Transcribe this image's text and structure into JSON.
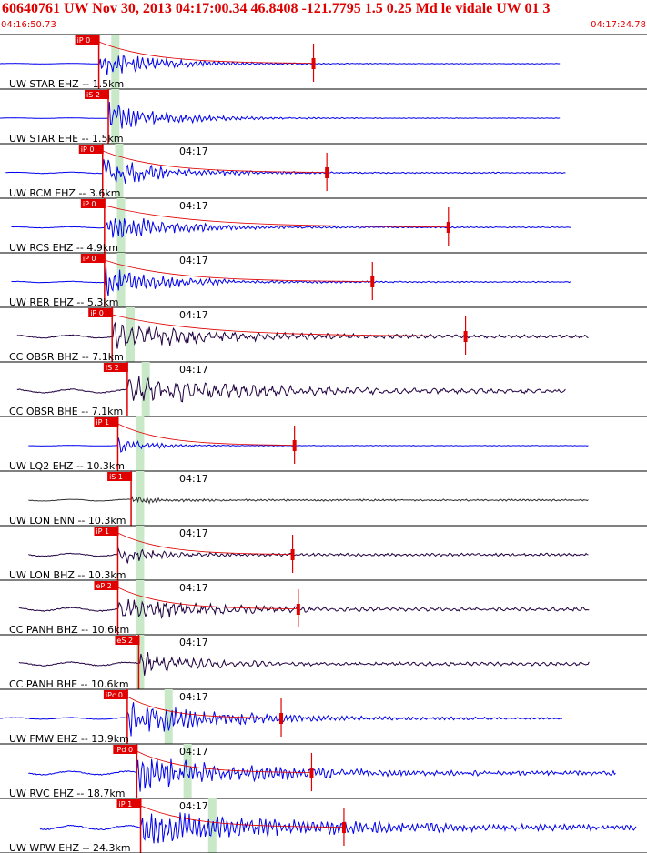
{
  "header": {
    "title": "60640761 UW Nov 30, 2013 04:17:00.34   46.8408 -121.7795  1.5 0.25 Md le vidale UW 01   3",
    "time_start": "04:16:50.73",
    "time_end": "04:17:24.78"
  },
  "colors": {
    "header": "#e00000",
    "pick": "#e00000",
    "shade": "#c8e8c8",
    "uw_trace": "#0000ee",
    "cc_trace": "#200040",
    "lqn_enn_trace": "#303030"
  },
  "chart_data": {
    "type": "seismogram",
    "time_range_s": [
      0,
      34.05
    ],
    "minute_tick_label": "04:17",
    "traces": [
      {
        "label": "UW STAR EHZ -- 1.5km",
        "color": "uw",
        "pick": "iP 0",
        "pick_t": 5.2,
        "shade_t": 6.0,
        "start_t": 0,
        "end_t": 29.5,
        "amp": 0.55,
        "noise": 0.01,
        "decay": 3.0,
        "coda_t": 16.5,
        "period": 0.25,
        "minute_label": false
      },
      {
        "label": "UW STAR EHE -- 1.5km",
        "color": "uw",
        "pick": "iS 2",
        "pick_t": 5.7,
        "shade_t": 6.0,
        "start_t": 0,
        "end_t": 29.5,
        "amp": 0.55,
        "noise": 0.01,
        "decay": 3.0,
        "coda_t": null,
        "period": 0.25,
        "minute_label": false
      },
      {
        "label": "UW RCM EHZ -- 3.6km",
        "color": "uw",
        "pick": "iP 0",
        "pick_t": 5.4,
        "shade_t": 6.2,
        "start_t": 0.3,
        "end_t": 29.8,
        "amp": 0.5,
        "noise": 0.02,
        "decay": 3.2,
        "coda_t": 17.2,
        "period": 0.25,
        "minute_label": true
      },
      {
        "label": "UW RCS EHZ -- 4.9km",
        "color": "uw",
        "pick": "iP 0",
        "pick_t": 5.5,
        "shade_t": 6.3,
        "start_t": 0.6,
        "end_t": 30.1,
        "amp": 0.5,
        "noise": 0.02,
        "decay": 3.4,
        "coda_t": 23.6,
        "period": 0.25,
        "minute_label": true
      },
      {
        "label": "UW RER EHZ -- 5.3km",
        "color": "uw",
        "pick": "iP 0",
        "pick_t": 5.5,
        "shade_t": 6.3,
        "start_t": 0.6,
        "end_t": 30.1,
        "amp": 0.5,
        "noise": 0.02,
        "decay": 3.4,
        "coda_t": 19.6,
        "period": 0.25,
        "minute_label": true
      },
      {
        "label": "CC OBSR BHZ -- 7.1km",
        "color": "cc",
        "pick": "iP 0",
        "pick_t": 5.9,
        "shade_t": 6.8,
        "start_t": 0.9,
        "end_t": 31.0,
        "amp": 0.45,
        "noise": 0.05,
        "decay": 5.0,
        "coda_t": 24.5,
        "period": 0.45,
        "minute_label": true
      },
      {
        "label": "CC OBSR BHE -- 7.1km",
        "color": "cc",
        "pick": "iS 2",
        "pick_t": 6.7,
        "shade_t": 7.6,
        "start_t": 0.9,
        "end_t": 29.8,
        "amp": 0.45,
        "noise": 0.06,
        "decay": 6.0,
        "coda_t": null,
        "period": 0.5,
        "minute_label": true
      },
      {
        "label": "UW LQ2 EHZ -- 10.3km",
        "color": "uw",
        "pick": "iP 1",
        "pick_t": 6.2,
        "shade_t": 7.3,
        "start_t": 1.5,
        "end_t": 31.0,
        "amp": 0.3,
        "noise": 0.01,
        "decay": 1.6,
        "coda_t": 15.5,
        "period": 0.25,
        "minute_label": false
      },
      {
        "label": "UW LON ENN -- 10.3km",
        "color": "lqn",
        "pick": "iS 1",
        "pick_t": 6.9,
        "shade_t": 7.3,
        "start_t": 1.5,
        "end_t": 31.0,
        "amp": 0.12,
        "noise": 0.03,
        "decay": 1.5,
        "coda_t": null,
        "period": 0.2,
        "minute_label": true
      },
      {
        "label": "UW LON BHZ -- 10.3km",
        "color": "cc",
        "pick": "iP 1",
        "pick_t": 6.2,
        "shade_t": 7.3,
        "start_t": 1.5,
        "end_t": 31.0,
        "amp": 0.35,
        "noise": 0.05,
        "decay": 1.5,
        "coda_t": 15.4,
        "period": 0.3,
        "minute_label": true
      },
      {
        "label": "CC PANH BHZ -- 10.6km",
        "color": "cc",
        "pick": "eP 2",
        "pick_t": 6.2,
        "shade_t": 7.3,
        "start_t": 1.0,
        "end_t": 31.0,
        "amp": 0.4,
        "noise": 0.06,
        "decay": 4.0,
        "coda_t": 15.7,
        "period": 0.4,
        "minute_label": true
      },
      {
        "label": "CC PANH BHE -- 10.6km",
        "color": "cc",
        "pick": "eS 2",
        "pick_t": 7.3,
        "shade_t": 7.3,
        "start_t": 1.0,
        "end_t": 31.0,
        "amp": 0.4,
        "noise": 0.06,
        "decay": 2.5,
        "coda_t": null,
        "period": 0.4,
        "minute_label": true
      },
      {
        "label": "UW FMW EHZ -- 13.9km",
        "color": "uw",
        "pick": "iPc 0",
        "pick_t": 6.7,
        "shade_t": 8.8,
        "start_t": 0,
        "end_t": 29.6,
        "amp": 0.55,
        "noise": 0.03,
        "decay": 5.0,
        "coda_t": 14.8,
        "period": 0.25,
        "minute_label": true
      },
      {
        "label": "UW RVC EHZ -- 18.7km",
        "color": "uw",
        "pick": "iPd 0",
        "pick_t": 7.2,
        "shade_t": 9.8,
        "start_t": 1.5,
        "end_t": 32.4,
        "amp": 0.55,
        "noise": 0.06,
        "decay": 6.0,
        "coda_t": 16.4,
        "period": 0.25,
        "minute_label": true
      },
      {
        "label": "UW WPW EHZ -- 24.3km",
        "color": "uw",
        "pick": "iP 1",
        "pick_t": 7.4,
        "shade_t": 11.1,
        "start_t": 2.1,
        "end_t": 33.5,
        "amp": 0.55,
        "noise": 0.07,
        "decay": 8.0,
        "coda_t": 18.1,
        "period": 0.25,
        "minute_label": true
      }
    ]
  }
}
